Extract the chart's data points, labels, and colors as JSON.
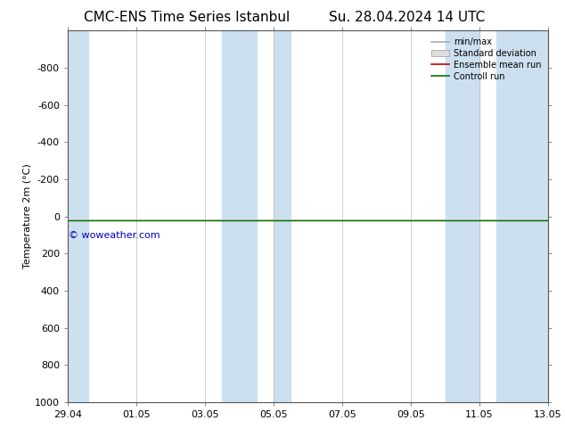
{
  "title_left": "CMC-ENS Time Series Istanbul",
  "title_right": "Su. 28.04.2024 14 UTC",
  "ylabel": "Temperature 2m (°C)",
  "xtick_labels": [
    "29.04",
    "01.05",
    "03.05",
    "05.05",
    "07.05",
    "09.05",
    "11.05",
    "13.05"
  ],
  "xtick_positions": [
    0,
    2,
    4,
    6,
    8,
    10,
    12,
    14
  ],
  "ylim_min": -1000,
  "ylim_max": 1000,
  "yticks": [
    -800,
    -600,
    -400,
    -200,
    0,
    200,
    400,
    600,
    800,
    1000
  ],
  "shaded_regions": [
    [
      0.0,
      0.6
    ],
    [
      4.5,
      5.5
    ],
    [
      6.0,
      6.5
    ],
    [
      11.0,
      12.0
    ],
    [
      12.5,
      14.0
    ]
  ],
  "shaded_color": "#cce0f0",
  "background_color": "#ffffff",
  "plot_bg_color": "#ffffff",
  "control_run_color": "#007700",
  "ensemble_mean_color": "#cc0000",
  "std_dev_color": "#cccccc",
  "minmax_color": "#aaaaaa",
  "watermark_text": "© woweather.com",
  "watermark_color": "#0000bb",
  "watermark_fontsize": 8,
  "title_fontsize": 11,
  "label_fontsize": 8,
  "tick_fontsize": 8,
  "legend_fontsize": 7,
  "control_run_y": 20.0,
  "x_min": 0,
  "x_max": 14
}
